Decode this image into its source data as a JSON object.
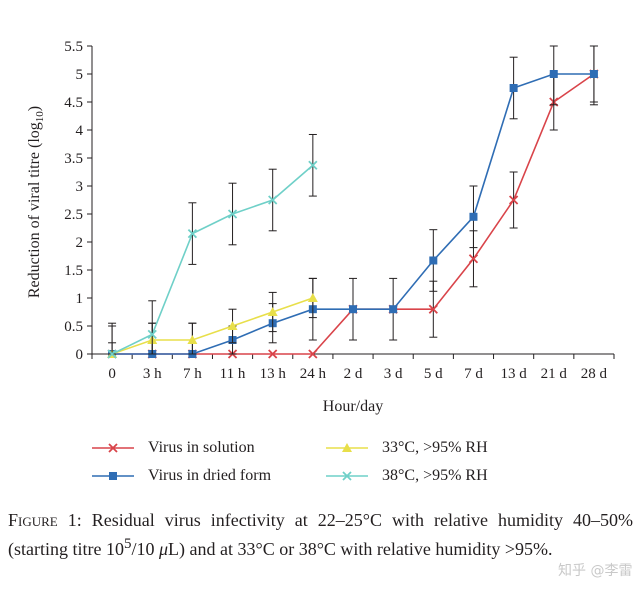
{
  "chart_data": {
    "type": "line",
    "categories": [
      "0",
      "3 h",
      "7 h",
      "11 h",
      "13 h",
      "24 h",
      "2 d",
      "3 d",
      "5 d",
      "7 d",
      "13 d",
      "21 d",
      "28 d"
    ],
    "xlabel": "Hour/day",
    "ylabel": "Reduction of viral titre (log",
    "ylabel_sub": "10",
    "ylabel_close": ")",
    "ylim": [
      0,
      5.5
    ],
    "yticks": [
      "0",
      "0.5",
      "1",
      "1.5",
      "2",
      "2.5",
      "3",
      "3.5",
      "4",
      "4.5",
      "5",
      "5.5"
    ],
    "legend_position": "bottom",
    "series": [
      {
        "name": "Virus in solution",
        "color": "#d9444a",
        "marker": "x",
        "values": [
          0,
          0,
          0,
          0,
          0,
          0,
          0.8,
          0.8,
          0.8,
          1.7,
          2.75,
          4.5,
          5.0
        ],
        "errors": [
          0.55,
          0.55,
          0.55,
          0,
          0,
          0,
          0.55,
          0.55,
          0.5,
          0.5,
          0.5,
          0.5,
          0.5
        ]
      },
      {
        "name": "Virus in dried form",
        "color": "#2f6db4",
        "marker": "square",
        "values": [
          0,
          0,
          0,
          0.25,
          0.55,
          0.8,
          0.8,
          0.8,
          1.67,
          2.45,
          4.75,
          5.0,
          5.0
        ],
        "errors": [
          0,
          0,
          0,
          0.25,
          0.35,
          0.55,
          0,
          0,
          0.55,
          0.55,
          0.55,
          0.55,
          0.55
        ]
      },
      {
        "name": "33°C, >95% RH",
        "color": "#e8df4a",
        "marker": "triangle",
        "values": [
          0,
          0.25,
          0.25,
          0.5,
          0.75,
          1.0,
          null,
          null,
          null,
          null,
          null,
          null,
          null
        ],
        "errors": [
          0.5,
          0.3,
          0.3,
          0.3,
          0.35,
          0.35,
          null,
          null,
          null,
          null,
          null,
          null,
          null
        ]
      },
      {
        "name": "38°C, >95% RH",
        "color": "#6fd0c8",
        "marker": "x",
        "values": [
          0,
          0.35,
          2.15,
          2.5,
          2.75,
          3.37,
          null,
          null,
          null,
          null,
          null,
          null,
          null
        ],
        "errors": [
          0.2,
          0.6,
          0.55,
          0.55,
          0.55,
          0.55,
          null,
          null,
          null,
          null,
          null,
          null,
          null
        ]
      }
    ]
  },
  "legend": {
    "items": [
      {
        "label": "Virus in solution"
      },
      {
        "label": "Virus in dried form"
      },
      {
        "label": "33°C, >95% RH"
      },
      {
        "label": "38°C, >95% RH"
      }
    ]
  },
  "caption": {
    "lead": "Figure 1:",
    "text_1": "Residual virus infectivity at 22–25°C with relative humidity 40–50% (starting titre 10",
    "sup": "5",
    "text_2": "/10 ",
    "mu": "μ",
    "text_3": "L) and at 33°C or 38°C with relative humidity >95%."
  },
  "watermark": "知乎 @李雷"
}
